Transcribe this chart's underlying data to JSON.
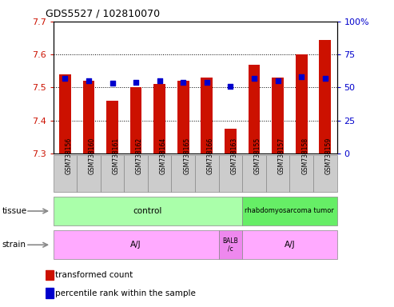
{
  "title": "GDS5527 / 102810070",
  "samples": [
    "GSM738156",
    "GSM738160",
    "GSM738161",
    "GSM738162",
    "GSM738164",
    "GSM738165",
    "GSM738166",
    "GSM738163",
    "GSM738155",
    "GSM738157",
    "GSM738158",
    "GSM738159"
  ],
  "transformed_count": [
    7.54,
    7.52,
    7.46,
    7.5,
    7.51,
    7.52,
    7.53,
    7.375,
    7.57,
    7.53,
    7.6,
    7.645
  ],
  "percentile_rank": [
    57,
    55,
    53,
    54,
    55,
    54,
    54,
    51,
    57,
    55,
    58,
    57
  ],
  "y_min": 7.3,
  "y_max": 7.7,
  "y_ticks": [
    7.3,
    7.4,
    7.5,
    7.6,
    7.7
  ],
  "y2_ticks": [
    0,
    25,
    50,
    75,
    100
  ],
  "bar_color": "#cc1100",
  "dot_color": "#0000cc",
  "tissue_control_label": "control",
  "tissue_rhabdo_label": "rhabdomyosarcoma tumor",
  "tissue_control_color": "#aaffaa",
  "tissue_rhabdo_color": "#66ee66",
  "strain_label_aj": "A/J",
  "strain_label_balb": "BALB\n/c",
  "strain_color": "#ffaaff",
  "strain_balb_color": "#ee88ee",
  "legend_red_label": "transformed count",
  "legend_blue_label": "percentile rank within the sample",
  "tick_label_color_left": "#cc1100",
  "tick_label_color_right": "#0000cc",
  "xtick_bg_color": "#cccccc",
  "xtick_border_color": "#888888"
}
